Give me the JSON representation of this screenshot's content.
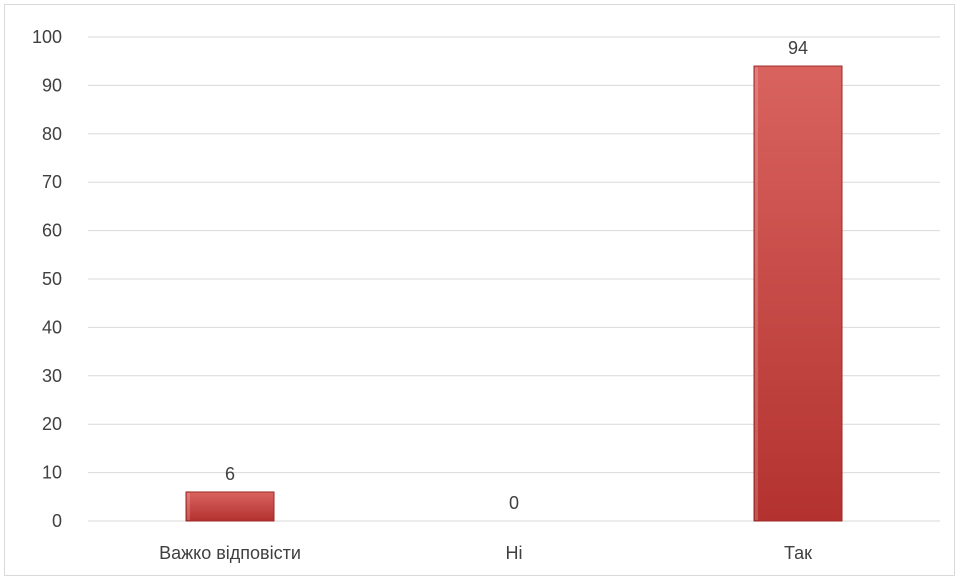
{
  "chart_data": {
    "type": "bar",
    "title": "",
    "xlabel": "",
    "ylabel": "",
    "categories": [
      "Важко відповісти",
      "Ні",
      "Так"
    ],
    "values": [
      6,
      0,
      94
    ],
    "data_labels": [
      "6",
      "0",
      "94"
    ],
    "ylim": [
      0,
      100
    ],
    "yticks": [
      0,
      10,
      20,
      30,
      40,
      50,
      60,
      70,
      80,
      90,
      100
    ],
    "ytick_labels": [
      "0",
      "10",
      "20",
      "30",
      "40",
      "50",
      "60",
      "70",
      "80",
      "90",
      "100"
    ],
    "grid": true,
    "legend": "none",
    "colors": {
      "bar_top": "#d9635f",
      "bar_bottom": "#b3322f",
      "bar_edge": "#9c2a27",
      "grid": "#d9d9d9",
      "text": "#404040"
    }
  }
}
